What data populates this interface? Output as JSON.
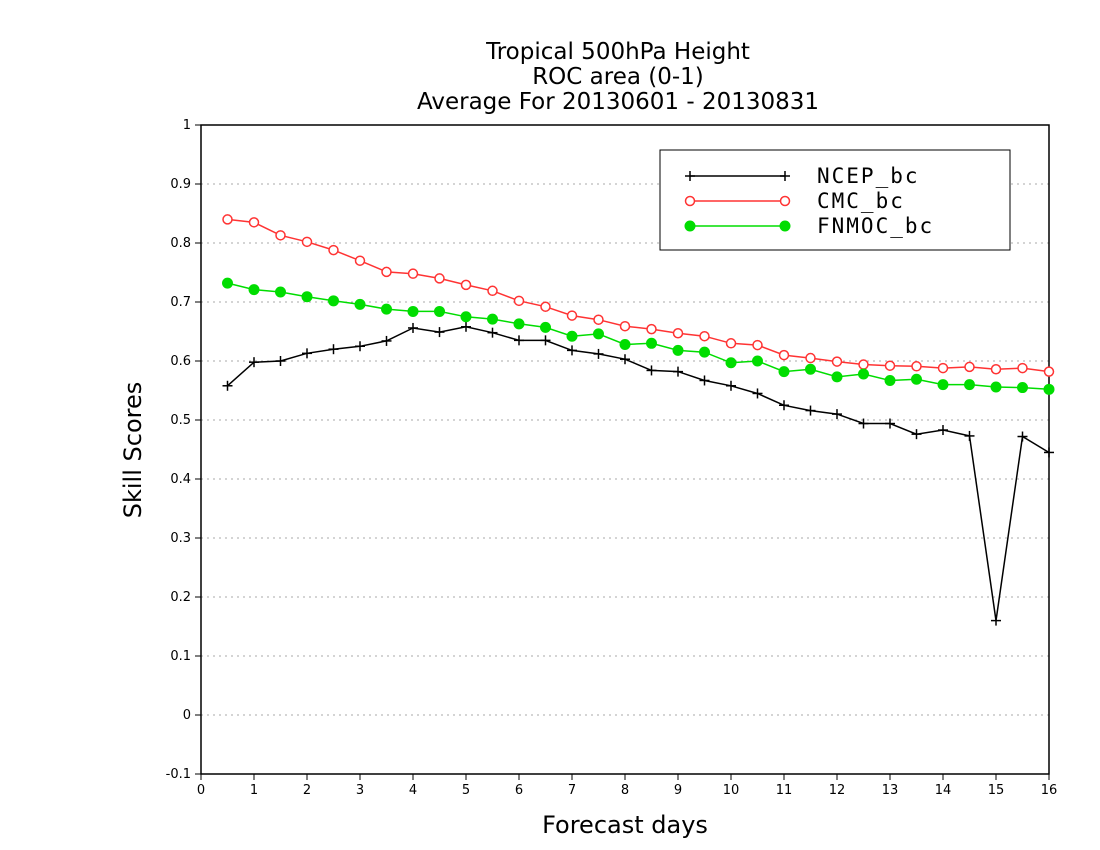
{
  "chart_data": {
    "type": "line",
    "title_lines": [
      "Tropical 500hPa Height",
      "ROC area (0-1)",
      "Average For 20130601 - 20130831"
    ],
    "xlabel": "Forecast days",
    "ylabel": "Skill Scores",
    "xlim": [
      0,
      16
    ],
    "ylim": [
      -0.1,
      1
    ],
    "xticks": [
      "0",
      "1",
      "2",
      "3",
      "4",
      "5",
      "6",
      "7",
      "8",
      "9",
      "10",
      "11",
      "12",
      "13",
      "14",
      "15",
      "16"
    ],
    "yticks": [
      "1",
      "0.9",
      "0.8",
      "0.7",
      "0.6",
      "0.5",
      "0.4",
      "0.3",
      "0.2",
      "0.1",
      "0",
      "-0.1"
    ],
    "grid": "horizontal dotted",
    "legend_position": "top-right",
    "x": [
      0.5,
      1,
      1.5,
      2,
      2.5,
      3,
      3.5,
      4,
      4.5,
      5,
      5.5,
      6,
      6.5,
      7,
      7.5,
      8,
      8.5,
      9,
      9.5,
      10,
      10.5,
      11,
      11.5,
      12,
      12.5,
      13,
      13.5,
      14,
      14.5,
      15,
      15.5,
      16
    ],
    "series": [
      {
        "name": "NCEP_bc",
        "color": "#000000",
        "marker": "plus",
        "values": [
          0.558,
          0.598,
          0.6,
          0.613,
          0.62,
          0.625,
          0.634,
          0.656,
          0.649,
          0.658,
          0.648,
          0.635,
          0.635,
          0.618,
          0.612,
          0.603,
          0.584,
          0.582,
          0.567,
          0.558,
          0.545,
          0.525,
          0.516,
          0.51,
          0.494,
          0.494,
          0.476,
          0.483,
          0.473,
          0.16,
          0.472,
          0.445
        ]
      },
      {
        "name": "CMC_bc",
        "color": "#ff3333",
        "marker": "open-circle",
        "values": [
          0.84,
          0.835,
          0.813,
          0.802,
          0.788,
          0.77,
          0.751,
          0.748,
          0.74,
          0.729,
          0.719,
          0.702,
          0.692,
          0.677,
          0.67,
          0.659,
          0.654,
          0.647,
          0.642,
          0.63,
          0.627,
          0.61,
          0.605,
          0.599,
          0.594,
          0.592,
          0.591,
          0.588,
          0.59,
          0.586,
          0.588,
          0.582
        ]
      },
      {
        "name": "FNMOC_bc",
        "color": "#00dd00",
        "marker": "filled-circle",
        "values": [
          0.732,
          0.721,
          0.717,
          0.709,
          0.702,
          0.696,
          0.688,
          0.684,
          0.684,
          0.675,
          0.671,
          0.663,
          0.657,
          0.642,
          0.646,
          0.628,
          0.63,
          0.618,
          0.615,
          0.597,
          0.6,
          0.582,
          0.586,
          0.573,
          0.578,
          0.567,
          0.569,
          0.56,
          0.56,
          0.556,
          0.555,
          0.552
        ]
      }
    ]
  }
}
